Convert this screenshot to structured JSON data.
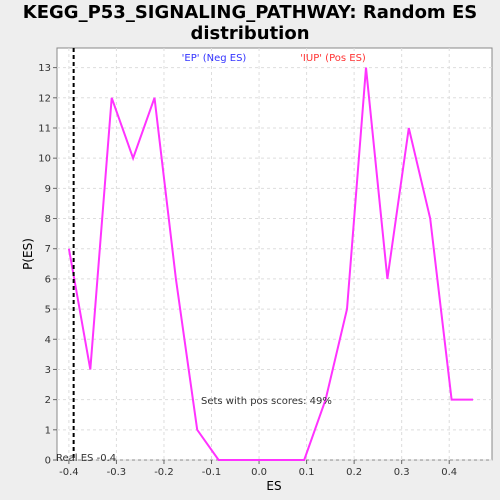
{
  "chart_data": {
    "type": "line",
    "title_lines": [
      "KEGG_P53_SIGNALING_PATHWAY: Random ES",
      "distribution"
    ],
    "xlabel": "ES",
    "ylabel": "P(ES)",
    "xlim": [
      -0.425,
      0.49
    ],
    "ylim": [
      0,
      13.65
    ],
    "xticks": [
      -0.4,
      -0.3,
      -0.2,
      -0.1,
      0.0,
      0.1,
      0.2,
      0.3,
      0.4
    ],
    "xtick_labels": [
      "-0.4",
      "-0.3",
      "-0.2",
      "-0.1",
      "0.0",
      "0.1",
      "0.2",
      "0.3",
      "0.4"
    ],
    "yticks": [
      0,
      1,
      2,
      3,
      4,
      5,
      6,
      7,
      8,
      9,
      10,
      11,
      12,
      13
    ],
    "ytick_labels": [
      "0",
      "1",
      "2",
      "3",
      "4",
      "5",
      "6",
      "7",
      "8",
      "9",
      "10",
      "11",
      "12",
      "13"
    ],
    "grid": true,
    "series": [
      {
        "color": "#ff33ff",
        "x": [
          -0.4,
          -0.355,
          -0.31,
          -0.265,
          -0.22,
          -0.175,
          -0.13,
          -0.085,
          -0.04,
          0.005,
          0.05,
          0.095,
          0.14,
          0.185,
          0.225,
          0.27,
          0.315,
          0.36,
          0.405,
          0.45
        ],
        "y": [
          7,
          3,
          12,
          10,
          12,
          6,
          1,
          0,
          0,
          0,
          0,
          0,
          2,
          5,
          13,
          6,
          11,
          8,
          2,
          2
        ]
      }
    ],
    "real_es": -0.39,
    "real_es_label": "Real ES -0.4",
    "neg_label": "'EP' (Neg ES)",
    "pos_label": "'IUP' (Pos ES)",
    "pos_scores_label": "Sets with pos scores: 49%",
    "neg_label_color": "#3333ff",
    "pos_label_color": "#ff3333"
  }
}
